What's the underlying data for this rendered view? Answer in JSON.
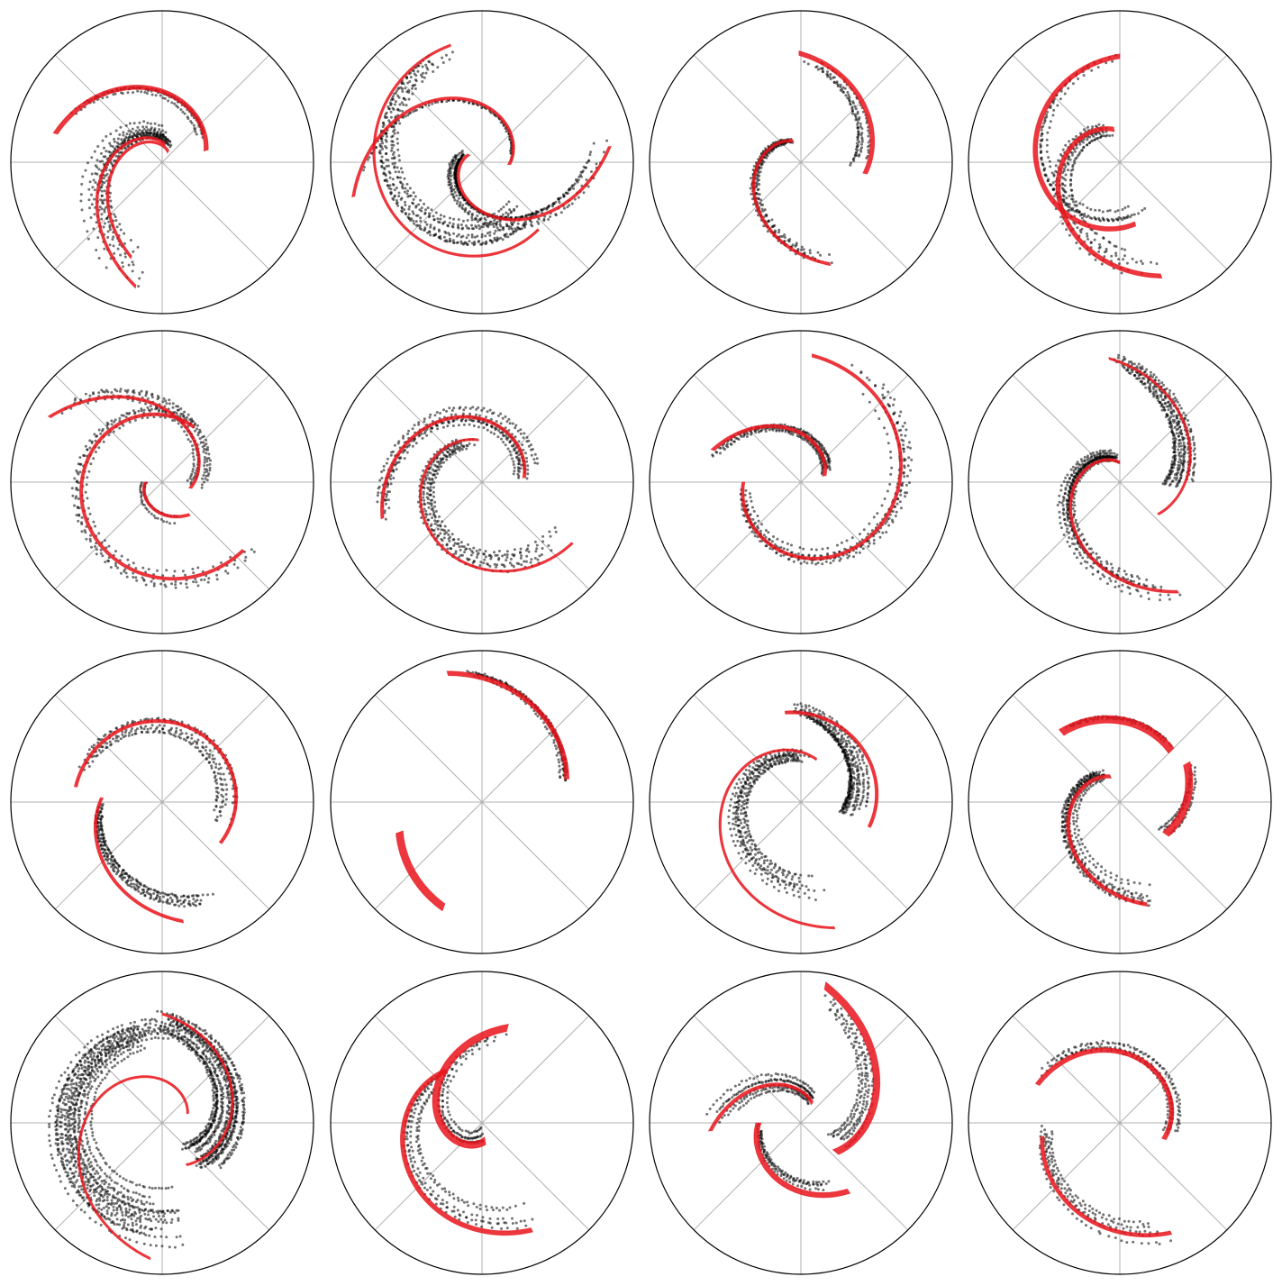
{
  "chart_data": {
    "type": "polar-scatter-grid",
    "rows": 4,
    "cols": 4,
    "grid": true,
    "angular_gridlines_deg": [
      0,
      45,
      90,
      135,
      180,
      225,
      270,
      315
    ],
    "radial_limit": [
      0,
      1
    ],
    "series_styles": {
      "points": {
        "color": "#000000",
        "marker": "dot",
        "opacity": 0.55
      },
      "fit_arm": {
        "color": "#e8141b",
        "opacity": 0.85
      }
    },
    "panels": [
      {
        "arms": [
          {
            "fit": {
              "t1": 165,
              "t2": 15,
              "r1": 0.73,
              "r2": 0.3,
              "w": 0.03
            },
            "points": {
              "t1": 155,
              "t2": 25,
              "r1": 0.68,
              "r2": 0.28,
              "spread": 0.05,
              "n": 160,
              "strands": 4
            }
          },
          {
            "fit": {
              "t1": 80,
              "t2": 258,
              "r1": 0.12,
              "r2": 0.84,
              "w": 0.02
            },
            "points": {
              "t1": 75,
              "t2": 262,
              "r1": 0.16,
              "r2": 0.8,
              "spread": 0.07,
              "n": 220,
              "strands": 7
            }
          },
          {
            "fit": {
              "t1": 60,
              "t2": 252,
              "r1": 0.08,
              "r2": 0.66,
              "w": 0.02
            },
            "points": {
              "t1": 60,
              "t2": 255,
              "r1": 0.12,
              "r2": 0.62,
              "spread": 0.06,
              "n": 180,
              "strands": 6
            }
          }
        ]
      },
      {
        "arms": [
          {
            "fit": {
              "t1": 105,
              "t2": 310,
              "r1": 0.8,
              "r2": 0.58,
              "w": 0.015
            },
            "points": {
              "t1": 100,
              "t2": 320,
              "r1": 0.78,
              "r2": 0.4,
              "spread": 0.08,
              "n": 500,
              "strands": 10
            }
          },
          {
            "fit": {
              "t1": 195,
              "t2": -5,
              "r1": 0.88,
              "r2": 0.18,
              "w": 0.02
            },
            "points": {
              "t1": 195,
              "t2": 0,
              "r1": 0.86,
              "r2": 0.18,
              "spread": 0.04,
              "n": 120,
              "strands": 3
            }
          },
          {
            "fit": {
              "t1": 150,
              "t2": 367,
              "r1": 0.1,
              "r2": 0.85,
              "w": 0.02
            },
            "points": {
              "t1": 150,
              "t2": 370,
              "r1": 0.14,
              "r2": 0.8,
              "spread": 0.07,
              "n": 420,
              "strands": 9
            }
          }
        ]
      },
      {
        "arms": [
          {
            "fit": {
              "t1": 91,
              "t2": -10,
              "r1": 0.72,
              "r2": 0.43,
              "w": 0.03
            },
            "points": {
              "t1": 88,
              "t2": -5,
              "r1": 0.7,
              "r2": 0.4,
              "spread": 0.06,
              "n": 140,
              "strands": 4
            }
          },
          {
            "fit": {
              "t1": 110,
              "t2": 286,
              "r1": 0.15,
              "r2": 0.7,
              "w": 0.02
            },
            "points": {
              "t1": 110,
              "t2": 290,
              "r1": 0.15,
              "r2": 0.7,
              "spread": 0.08,
              "n": 300,
              "strands": 9
            }
          }
        ]
      },
      {
        "arms": [
          {
            "fit": {
              "t1": 90,
              "t2": 284,
              "r1": 0.7,
              "r2": 0.42,
              "w": 0.03
            },
            "points": {
              "t1": 88,
              "t2": 300,
              "r1": 0.7,
              "r2": 0.3,
              "spread": 0.05,
              "n": 180,
              "strands": 4
            }
          },
          {
            "fit": {
              "t1": 100,
              "t2": 290,
              "r1": 0.22,
              "r2": 0.8,
              "w": 0.03
            },
            "points": {
              "t1": 105,
              "t2": 292,
              "r1": 0.22,
              "r2": 0.75,
              "spread": 0.09,
              "n": 260,
              "strands": 8
            }
          }
        ]
      },
      {
        "arms": [
          {
            "fit": {
              "t1": 150,
              "t2": -12,
              "r1": 0.86,
              "r2": 0.19,
              "w": 0.02
            },
            "points": {
              "t1": 145,
              "t2": -10,
              "r1": 0.84,
              "r2": 0.22,
              "spread": 0.06,
              "n": 220,
              "strands": 6
            }
          },
          {
            "fit": {
              "t1": 60,
              "t2": 320,
              "r1": 0.42,
              "r2": 0.7,
              "w": 0.02
            },
            "points": {
              "t1": 60,
              "t2": 325,
              "r1": 0.42,
              "r2": 0.68,
              "spread": 0.06,
              "n": 260,
              "strands": 6
            }
          },
          {
            "fit": {
              "t1": 180,
              "t2": 310,
              "r1": 0.11,
              "r2": 0.28,
              "w": 0.02
            },
            "points": {
              "t1": 180,
              "t2": 300,
              "r1": 0.12,
              "r2": 0.28,
              "spread": 0.03,
              "n": 50,
              "strands": 2
            }
          }
        ]
      },
      {
        "arms": [
          {
            "fit": {
              "t1": 200,
              "t2": 6,
              "r1": 0.7,
              "r2": 0.28,
              "w": 0.02
            },
            "points": {
              "t1": 205,
              "t2": 0,
              "r1": 0.72,
              "r2": 0.3,
              "spread": 0.07,
              "n": 360,
              "strands": 9
            }
          },
          {
            "fit": {
              "t1": 95,
              "t2": 326,
              "r1": 0.28,
              "r2": 0.72,
              "w": 0.015
            },
            "points": {
              "t1": 100,
              "t2": 330,
              "r1": 0.28,
              "r2": 0.68,
              "spread": 0.07,
              "n": 360,
              "strands": 9
            }
          }
        ]
      },
      {
        "arms": [
          {
            "fit": {
              "t1": 160,
              "t2": 15,
              "r1": 0.62,
              "r2": 0.16,
              "w": 0.025
            },
            "points": {
              "t1": 168,
              "t2": 20,
              "r1": 0.62,
              "r2": 0.16,
              "spread": 0.05,
              "n": 240,
              "strands": 5
            }
          },
          {
            "fit": {
              "t1": 180,
              "t2": 445,
              "r1": 0.38,
              "r2": 0.84,
              "w": 0.02
            },
            "points": {
              "t1": 185,
              "t2": 430,
              "r1": 0.38,
              "r2": 0.85,
              "spread": 0.06,
              "n": 360,
              "strands": 8
            }
          }
        ]
      },
      {
        "arms": [
          {
            "fit": {
              "t1": 95,
              "t2": -40,
              "r1": 0.82,
              "r2": 0.33,
              "w": 0.015
            },
            "points": {
              "t1": 92,
              "t2": -5,
              "r1": 0.8,
              "r2": 0.32,
              "spread": 0.08,
              "n": 420,
              "strands": 10
            }
          },
          {
            "fit": {
              "t1": 90,
              "t2": 298,
              "r1": 0.13,
              "r2": 0.82,
              "w": 0.02
            },
            "points": {
              "t1": 95,
              "t2": 300,
              "r1": 0.16,
              "r2": 0.8,
              "spread": 0.09,
              "n": 480,
              "strands": 11
            }
          }
        ]
      },
      {
        "arms": [
          {
            "fit": {
              "t1": 170,
              "t2": -35,
              "r1": 0.58,
              "r2": 0.47,
              "w": 0.02
            },
            "points": {
              "t1": 160,
              "t2": -20,
              "r1": 0.58,
              "r2": 0.42,
              "spread": 0.07,
              "n": 280,
              "strands": 8
            }
          },
          {
            "fit": {
              "t1": 176,
              "t2": 280,
              "r1": 0.4,
              "r2": 0.8,
              "w": 0.02
            },
            "points": {
              "t1": 180,
              "t2": 300,
              "r1": 0.4,
              "r2": 0.72,
              "spread": 0.07,
              "n": 280,
              "strands": 8
            }
          }
        ]
      },
      {
        "arms": [
          {
            "fit": {
              "t1": 105,
              "t2": 15,
              "r1": 0.88,
              "r2": 0.58,
              "w": 0.03
            },
            "points": {
              "t1": 98,
              "t2": 12,
              "r1": 0.88,
              "r2": 0.58,
              "spread": 0.05,
              "n": 230,
              "strands": 6
            }
          },
          {
            "fit": {
              "t1": 200,
              "t2": 250,
              "r1": 0.58,
              "r2": 0.74,
              "w": 0.05
            },
            "points": null
          }
        ]
      },
      {
        "arms": [
          {
            "fit": {
              "t1": 100,
              "t2": -20,
              "r1": 0.6,
              "r2": 0.48,
              "w": 0.02
            },
            "points": {
              "t1": 95,
              "t2": -15,
              "r1": 0.62,
              "r2": 0.3,
              "spread": 0.08,
              "n": 420,
              "strands": 10
            }
          },
          {
            "fit": {
              "t1": 70,
              "t2": 285,
              "r1": 0.3,
              "r2": 0.86,
              "w": 0.015
            },
            "points": {
              "t1": 75,
              "t2": 290,
              "r1": 0.3,
              "r2": 0.62,
              "spread": 0.08,
              "n": 420,
              "strands": 10
            }
          }
        ]
      },
      {
        "arms": [
          {
            "fit": {
              "t1": 130,
              "t2": 45,
              "r1": 0.6,
              "r2": 0.48,
              "w": 0.05
            },
            "points": {
              "t1": 128,
              "t2": 45,
              "r1": 0.6,
              "r2": 0.48,
              "spread": 0.06,
              "n": 90,
              "strands": 3
            }
          },
          {
            "fit": {
              "t1": 30,
              "t2": -35,
              "r1": 0.51,
              "r2": 0.37,
              "w": 0.05
            },
            "points": {
              "t1": 30,
              "t2": -35,
              "r1": 0.55,
              "r2": 0.36,
              "spread": 0.07,
              "n": 80,
              "strands": 3
            }
          },
          {
            "fit": {
              "t1": 110,
              "t2": 285,
              "r1": 0.18,
              "r2": 0.7,
              "w": 0.025
            },
            "points": {
              "t1": 115,
              "t2": 290,
              "r1": 0.2,
              "r2": 0.65,
              "spread": 0.1,
              "n": 380,
              "strands": 10
            }
          }
        ]
      },
      {
        "arms": [
          {
            "fit": {
              "t1": 90,
              "t2": -60,
              "r1": 0.72,
              "r2": 0.32,
              "w": 0.015
            },
            "points": {
              "t1": 100,
              "t2": -55,
              "r1": 0.7,
              "r2": 0.32,
              "spread": 0.12,
              "n": 900,
              "strands": 16
            }
          },
          {
            "fit": {
              "t1": 20,
              "t2": 265,
              "r1": 0.18,
              "r2": 0.9,
              "w": 0.015
            },
            "points": {
              "t1": 85,
              "t2": 280,
              "r1": 0.6,
              "r2": 0.64,
              "spread": 0.14,
              "n": 1100,
              "strands": 18
            }
          }
        ]
      },
      {
        "arms": [
          {
            "fit": {
              "t1": 75,
              "t2": 280,
              "r1": 0.65,
              "r2": 0.12,
              "w": 0.05
            },
            "points": {
              "t1": 70,
              "t2": 275,
              "r1": 0.65,
              "r2": 0.12,
              "spread": 0.1,
              "n": 160,
              "strands": 5
            }
          },
          {
            "fit": {
              "t1": 125,
              "t2": 295,
              "r1": 0.42,
              "r2": 0.78,
              "w": 0.03
            },
            "points": {
              "t1": 130,
              "t2": 300,
              "r1": 0.42,
              "r2": 0.74,
              "spread": 0.12,
              "n": 220,
              "strands": 6
            }
          }
        ]
      },
      {
        "arms": [
          {
            "fit": {
              "t1": 80,
              "t2": -40,
              "r1": 0.92,
              "r2": 0.3,
              "w": 0.05
            },
            "points": {
              "t1": 85,
              "t2": -30,
              "r1": 0.9,
              "r2": 0.28,
              "spread": 0.08,
              "n": 200,
              "strands": 5
            }
          },
          {
            "fit": {
              "t1": 60,
              "t2": 185,
              "r1": 0.15,
              "r2": 0.6,
              "w": 0.025
            },
            "points": {
              "t1": 60,
              "t2": 180,
              "r1": 0.16,
              "r2": 0.56,
              "spread": 0.06,
              "n": 220,
              "strands": 6
            }
          },
          {
            "fit": {
              "t1": 180,
              "t2": 305,
              "r1": 0.28,
              "r2": 0.55,
              "w": 0.035
            },
            "points": {
              "t1": 180,
              "t2": 300,
              "r1": 0.28,
              "r2": 0.5,
              "spread": 0.06,
              "n": 120,
              "strands": 4
            }
          }
        ]
      },
      {
        "arms": [
          {
            "fit": {
              "t1": 155,
              "t2": -20,
              "r1": 0.6,
              "r2": 0.31,
              "w": 0.03
            },
            "points": {
              "t1": 150,
              "t2": -20,
              "r1": 0.62,
              "r2": 0.31,
              "spread": 0.06,
              "n": 200,
              "strands": 5
            }
          },
          {
            "fit": {
              "t1": 190,
              "t2": 295,
              "r1": 0.52,
              "r2": 0.8,
              "w": 0.025
            },
            "points": {
              "t1": 180,
              "t2": 295,
              "r1": 0.48,
              "r2": 0.8,
              "spread": 0.09,
              "n": 180,
              "strands": 5
            }
          }
        ]
      }
    ]
  }
}
